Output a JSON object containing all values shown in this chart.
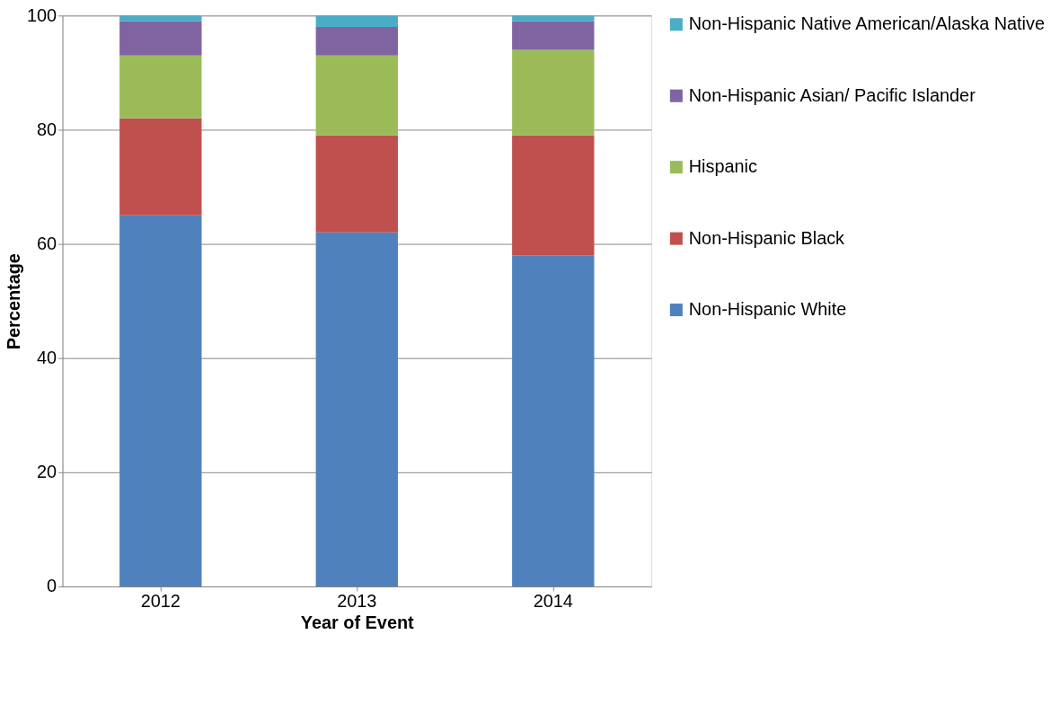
{
  "chart_data": {
    "type": "bar",
    "stacked": true,
    "xlabel": "Year of Event",
    "ylabel": "Percentage",
    "categories": [
      "2012",
      "2013",
      "2014"
    ],
    "series": [
      {
        "name": "Non-Hispanic White",
        "color": "#4f81bd",
        "values": [
          65,
          62,
          58
        ]
      },
      {
        "name": "Non-Hispanic Black",
        "color": "#c0504d",
        "values": [
          17,
          17,
          21
        ]
      },
      {
        "name": "Hispanic",
        "color": "#9bbb59",
        "values": [
          11,
          14,
          15
        ]
      },
      {
        "name": "Non-Hispanic Asian/ Pacific Islander",
        "color": "#8064a2",
        "values": [
          6,
          5,
          5
        ]
      },
      {
        "name": "Non-Hispanic Native American/Alaska Native",
        "color": "#4bacc6",
        "values": [
          1,
          2,
          1
        ]
      }
    ],
    "ylim": [
      0,
      100
    ],
    "yticks": [
      0,
      20,
      40,
      60,
      80,
      100
    ],
    "grid": "y",
    "legend": "right"
  }
}
